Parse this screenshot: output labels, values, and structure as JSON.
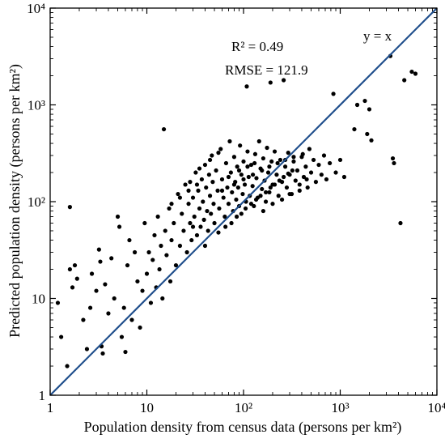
{
  "chart_data": {
    "type": "scatter",
    "title": "",
    "xlabel": "Population density from census data (persons per km²)",
    "ylabel": "Predicted population density (persons per km²)",
    "xscale": "log",
    "yscale": "log",
    "xlim": [
      1,
      10000
    ],
    "ylim": [
      1,
      10000
    ],
    "x_ticks": [
      {
        "value": 1,
        "label": "1"
      },
      {
        "value": 10,
        "label": "10"
      },
      {
        "value": 100,
        "label": "10²"
      },
      {
        "value": 1000,
        "label": "10³"
      },
      {
        "value": 10000,
        "label": "10⁴"
      }
    ],
    "y_ticks": [
      {
        "value": 1,
        "label": "1"
      },
      {
        "value": 10,
        "label": "10"
      },
      {
        "value": 100,
        "label": "10²"
      },
      {
        "value": 1000,
        "label": "10³"
      },
      {
        "value": 10000,
        "label": "10⁴"
      }
    ],
    "annotations": {
      "r2": "R² = 0.49",
      "rmse": "RMSE = 121.9",
      "line_label": "y = x"
    },
    "reference_line": {
      "type": "identity",
      "color": "#1f4e8c"
    },
    "point_color": "#000000",
    "grid": false,
    "series": [
      {
        "points": [
          [
            1.2,
            9
          ],
          [
            1.3,
            4
          ],
          [
            1.5,
            2
          ],
          [
            1.6,
            88
          ],
          [
            1.6,
            20
          ],
          [
            1.7,
            13
          ],
          [
            1.8,
            22
          ],
          [
            1.9,
            16
          ],
          [
            2.2,
            6
          ],
          [
            2.4,
            3
          ],
          [
            2.6,
            8
          ],
          [
            2.7,
            18
          ],
          [
            3.0,
            12
          ],
          [
            3.2,
            32
          ],
          [
            3.3,
            24
          ],
          [
            3.4,
            3.2
          ],
          [
            3.5,
            2.7
          ],
          [
            3.7,
            14
          ],
          [
            4.0,
            7
          ],
          [
            4.3,
            26
          ],
          [
            4.6,
            10
          ],
          [
            5.0,
            70
          ],
          [
            5.2,
            55
          ],
          [
            5.5,
            4
          ],
          [
            5.8,
            8
          ],
          [
            6.0,
            2.8
          ],
          [
            6.3,
            22
          ],
          [
            6.6,
            40
          ],
          [
            7.0,
            6
          ],
          [
            7.5,
            30
          ],
          [
            8.0,
            15
          ],
          [
            8.5,
            5
          ],
          [
            9.0,
            12
          ],
          [
            9.5,
            60
          ],
          [
            10,
            18
          ],
          [
            10.5,
            30
          ],
          [
            11,
            9
          ],
          [
            11.5,
            25
          ],
          [
            12,
            45
          ],
          [
            12.5,
            13
          ],
          [
            13,
            70
          ],
          [
            13.5,
            20
          ],
          [
            14,
            35
          ],
          [
            14.5,
            10
          ],
          [
            15,
            560
          ],
          [
            15.5,
            50
          ],
          [
            16,
            28
          ],
          [
            17,
            85
          ],
          [
            17.5,
            15
          ],
          [
            18,
            40
          ],
          [
            19,
            60
          ],
          [
            20,
            22
          ],
          [
            21,
            120
          ],
          [
            22,
            35
          ],
          [
            23,
            75
          ],
          [
            24,
            50
          ],
          [
            25,
            150
          ],
          [
            26,
            30
          ],
          [
            27,
            95
          ],
          [
            28,
            60
          ],
          [
            29,
            40
          ],
          [
            30,
            110
          ],
          [
            31,
            70
          ],
          [
            32,
            200
          ],
          [
            33,
            45
          ],
          [
            34,
            130
          ],
          [
            35,
            85
          ],
          [
            36,
            55
          ],
          [
            37,
            170
          ],
          [
            38,
            100
          ],
          [
            39,
            65
          ],
          [
            40,
            240
          ],
          [
            41,
            140
          ],
          [
            42,
            80
          ],
          [
            43,
            50
          ],
          [
            44,
            190
          ],
          [
            45,
            115
          ],
          [
            46,
            75
          ],
          [
            47,
            300
          ],
          [
            48,
            160
          ],
          [
            49,
            95
          ],
          [
            50,
            60
          ],
          [
            52,
            210
          ],
          [
            54,
            130
          ],
          [
            56,
            85
          ],
          [
            58,
            350
          ],
          [
            60,
            170
          ],
          [
            62,
            110
          ],
          [
            64,
            70
          ],
          [
            66,
            250
          ],
          [
            68,
            140
          ],
          [
            70,
            95
          ],
          [
            72,
            420
          ],
          [
            74,
            200
          ],
          [
            76,
            125
          ],
          [
            78,
            80
          ],
          [
            80,
            290
          ],
          [
            82,
            160
          ],
          [
            84,
            105
          ],
          [
            86,
            230
          ],
          [
            88,
            140
          ],
          [
            90,
            90
          ],
          [
            92,
            380
          ],
          [
            95,
            190
          ],
          [
            98,
            120
          ],
          [
            100,
            260
          ],
          [
            103,
            150
          ],
          [
            106,
            100
          ],
          [
            108,
            1550
          ],
          [
            110,
            330
          ],
          [
            113,
            180
          ],
          [
            116,
            115
          ],
          [
            120,
            240
          ],
          [
            124,
            145
          ],
          [
            128,
            90
          ],
          [
            132,
            310
          ],
          [
            136,
            175
          ],
          [
            140,
            110
          ],
          [
            145,
            420
          ],
          [
            150,
            220
          ],
          [
            155,
            135
          ],
          [
            160,
            280
          ],
          [
            165,
            165
          ],
          [
            170,
            100
          ],
          [
            175,
            360
          ],
          [
            180,
            200
          ],
          [
            185,
            125
          ],
          [
            190,
            1700
          ],
          [
            195,
            260
          ],
          [
            200,
            150
          ],
          [
            210,
            330
          ],
          [
            220,
            190
          ],
          [
            230,
            115
          ],
          [
            240,
            270
          ],
          [
            250,
            160
          ],
          [
            260,
            1800
          ],
          [
            270,
            230
          ],
          [
            280,
            140
          ],
          [
            290,
            320
          ],
          [
            300,
            190
          ],
          [
            315,
            120
          ],
          [
            330,
            260
          ],
          [
            345,
            165
          ],
          [
            360,
            210
          ],
          [
            380,
            130
          ],
          [
            400,
            290
          ],
          [
            420,
            180
          ],
          [
            440,
            230
          ],
          [
            460,
            140
          ],
          [
            480,
            350
          ],
          [
            500,
            200
          ],
          [
            530,
            270
          ],
          [
            560,
            160
          ],
          [
            600,
            240
          ],
          [
            640,
            190
          ],
          [
            680,
            300
          ],
          [
            720,
            170
          ],
          [
            780,
            250
          ],
          [
            850,
            1300
          ],
          [
            900,
            200
          ],
          [
            1000,
            270
          ],
          [
            1100,
            180
          ],
          [
            1400,
            560
          ],
          [
            1500,
            1000
          ],
          [
            1800,
            1100
          ],
          [
            1900,
            500
          ],
          [
            2000,
            900
          ],
          [
            2100,
            430
          ],
          [
            3500,
            280
          ],
          [
            3600,
            250
          ],
          [
            4200,
            60
          ],
          [
            4600,
            1800
          ],
          [
            5500,
            2200
          ],
          [
            6000,
            2100
          ],
          [
            3300,
            3200
          ],
          [
            30,
            55
          ],
          [
            40,
            35
          ],
          [
            55,
            48
          ],
          [
            65,
            55
          ],
          [
            75,
            60
          ],
          [
            85,
            70
          ],
          [
            95,
            75
          ],
          [
            105,
            85
          ],
          [
            120,
            95
          ],
          [
            135,
            105
          ],
          [
            150,
            115
          ],
          [
            170,
            125
          ],
          [
            190,
            140
          ],
          [
            210,
            150
          ],
          [
            235,
            165
          ],
          [
            260,
            180
          ],
          [
            290,
            195
          ],
          [
            320,
            210
          ],
          [
            28,
            160
          ],
          [
            35,
            220
          ],
          [
            45,
            270
          ],
          [
            55,
            320
          ],
          [
            70,
            180
          ],
          [
            90,
            210
          ],
          [
            110,
            230
          ],
          [
            130,
            250
          ],
          [
            160,
            80
          ],
          [
            200,
            95
          ],
          [
            250,
            105
          ],
          [
            300,
            120
          ],
          [
            380,
            150
          ],
          [
            450,
            170
          ],
          [
            18,
            95
          ],
          [
            22,
            110
          ],
          [
            27,
            130
          ],
          [
            33,
            150
          ],
          [
            60,
            130
          ],
          [
            80,
            150
          ],
          [
            100,
            170
          ],
          [
            125,
            190
          ],
          [
            155,
            210
          ],
          [
            185,
            230
          ],
          [
            225,
            250
          ],
          [
            270,
            270
          ],
          [
            330,
            290
          ],
          [
            410,
            310
          ]
        ]
      }
    ]
  }
}
